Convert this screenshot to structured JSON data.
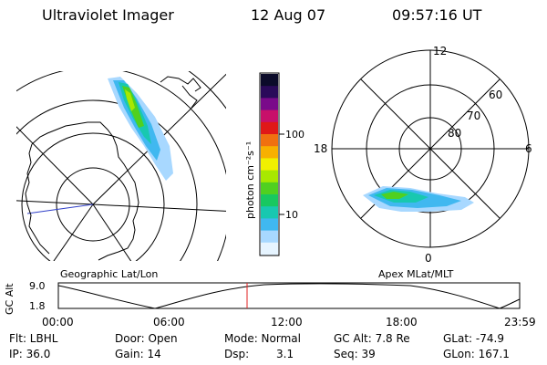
{
  "header": {
    "instrument": "Ultraviolet Imager",
    "date": "12 Aug 07",
    "time": "09:57:16 UT"
  },
  "colorbar": {
    "unit_label": "photon cm⁻²s⁻¹",
    "ticks": [
      "100",
      "10"
    ],
    "colors": [
      "#0b0b2a",
      "#2a0a5a",
      "#7a0a8a",
      "#c8106a",
      "#e01818",
      "#f07010",
      "#f8b000",
      "#f0f000",
      "#a8e800",
      "#50d020",
      "#18c860",
      "#18c8b0",
      "#40b8f0",
      "#a8d8ff",
      "#e6f4ff"
    ]
  },
  "panels": {
    "left_title": "Geographic Lat/Lon",
    "right_title": "Apex MLat/MLT",
    "right_labels": {
      "top": "12",
      "left": "18",
      "right": "6",
      "bottom": "0",
      "r60": "60",
      "r70": "70",
      "r80": "80"
    }
  },
  "altitude_plot": {
    "ylabel": "GC Alt",
    "yticks": [
      "9.0",
      "1.8"
    ],
    "xticks": [
      "00:00",
      "06:00",
      "12:00",
      "18:00",
      "23:59"
    ],
    "cursor_color": "#e02020"
  },
  "status": {
    "flt": "Flt: LBHL",
    "door": "Door: Open",
    "mode": "Mode: Normal",
    "gc_alt": "GC Alt: 7.8 Re",
    "glat": "GLat: -74.9",
    "ip": "IP: 36.0",
    "gain": "Gain: 14",
    "dsp_label": "Dsp:",
    "dsp_value": "3.1",
    "seq": "Seq: 39",
    "glon": "GLon: 167.1"
  }
}
